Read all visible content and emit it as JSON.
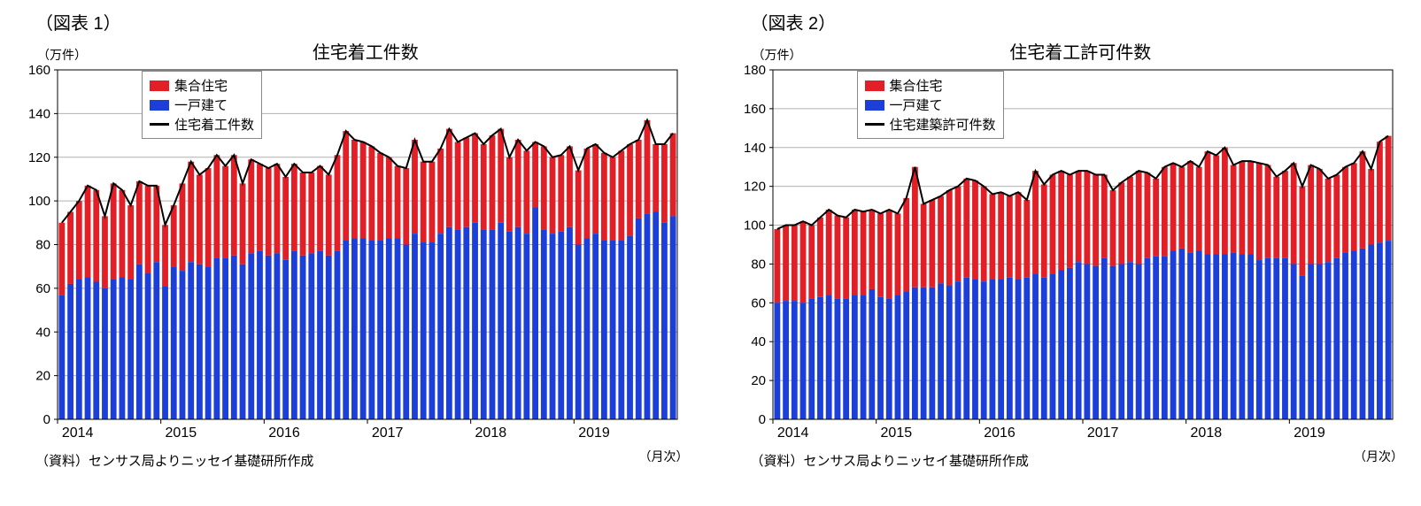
{
  "chart1": {
    "type": "stacked-bar-line",
    "figure_label": "（図表 1）",
    "title": "住宅着工件数",
    "y_unit": "（万件）",
    "x_unit": "（月次）",
    "source": "（資料）センサス局よりニッセイ基礎研所作成",
    "ylim": [
      0,
      160
    ],
    "ytick_step": 20,
    "x_years": [
      "2014",
      "2015",
      "2016",
      "2017",
      "2018",
      "2019"
    ],
    "background_color": "#ffffff",
    "grid_color": "#b0b0b0",
    "axis_color": "#000000",
    "bar_colors": {
      "multi": "#e21f26",
      "single": "#1b3fd8"
    },
    "line_color": "#000000",
    "line_width": 2,
    "legend": [
      {
        "type": "box",
        "color": "#e21f26",
        "label": "集合住宅"
      },
      {
        "type": "box",
        "color": "#1b3fd8",
        "label": "一戸建て"
      },
      {
        "type": "line",
        "color": "#000000",
        "label": "住宅着工件数"
      }
    ],
    "single": [
      57,
      62,
      64,
      65,
      63,
      60,
      64,
      65,
      64,
      71,
      67,
      72,
      61,
      70,
      68,
      72,
      71,
      70,
      74,
      74,
      75,
      71,
      76,
      77,
      75,
      76,
      73,
      77,
      75,
      76,
      77,
      75,
      77,
      82,
      83,
      83,
      82,
      82,
      83,
      83,
      80,
      85,
      81,
      81,
      85,
      88,
      87,
      88,
      90,
      87,
      87,
      90,
      86,
      88,
      85,
      97,
      87,
      85,
      86,
      88,
      80,
      83,
      85,
      82,
      82,
      82,
      84,
      92,
      94,
      95,
      90,
      93
    ],
    "total": [
      90,
      95,
      100,
      107,
      105,
      93,
      108,
      105,
      98,
      109,
      107,
      107,
      89,
      98,
      108,
      118,
      112,
      115,
      121,
      116,
      121,
      108,
      119,
      117,
      115,
      117,
      111,
      117,
      113,
      113,
      116,
      112,
      121,
      132,
      128,
      127,
      125,
      122,
      120,
      116,
      115,
      128,
      118,
      118,
      124,
      133,
      127,
      129,
      131,
      126,
      130,
      133,
      120,
      128,
      123,
      127,
      125,
      120,
      121,
      125,
      114,
      124,
      126,
      122,
      120,
      123,
      126,
      128,
      137,
      126,
      126,
      131
    ]
  },
  "chart2": {
    "type": "stacked-bar-line",
    "figure_label": "（図表 2）",
    "title": "住宅着工許可件数",
    "y_unit": "（万件）",
    "x_unit": "（月次）",
    "source": "（資料）センサス局よりニッセイ基礎研所作成",
    "ylim": [
      0,
      180
    ],
    "ytick_step": 20,
    "x_years": [
      "2014",
      "2015",
      "2016",
      "2017",
      "2018",
      "2019"
    ],
    "background_color": "#ffffff",
    "grid_color": "#b0b0b0",
    "axis_color": "#000000",
    "bar_colors": {
      "multi": "#e21f26",
      "single": "#1b3fd8"
    },
    "line_color": "#000000",
    "line_width": 2,
    "legend": [
      {
        "type": "box",
        "color": "#e21f26",
        "label": "集合住宅"
      },
      {
        "type": "box",
        "color": "#1b3fd8",
        "label": "一戸建て"
      },
      {
        "type": "line",
        "color": "#000000",
        "label": "住宅建築許可件数"
      }
    ],
    "single": [
      60,
      61,
      61,
      60,
      62,
      63,
      64,
      62,
      62,
      64,
      64,
      67,
      63,
      62,
      64,
      66,
      68,
      68,
      68,
      70,
      69,
      71,
      73,
      72,
      71,
      72,
      72,
      73,
      72,
      73,
      75,
      73,
      75,
      77,
      78,
      81,
      80,
      79,
      83,
      79,
      80,
      81,
      80,
      83,
      84,
      84,
      87,
      88,
      86,
      87,
      85,
      85,
      85,
      86,
      85,
      85,
      82,
      83,
      83,
      83,
      80,
      74,
      80,
      80,
      81,
      83,
      86,
      87,
      88,
      90,
      91,
      92
    ],
    "total": [
      98,
      100,
      100,
      102,
      100,
      104,
      108,
      105,
      104,
      108,
      107,
      108,
      106,
      108,
      106,
      114,
      130,
      111,
      113,
      115,
      118,
      120,
      124,
      123,
      120,
      116,
      117,
      115,
      117,
      113,
      128,
      121,
      126,
      128,
      126,
      128,
      128,
      126,
      126,
      118,
      122,
      125,
      128,
      127,
      124,
      130,
      132,
      130,
      133,
      130,
      138,
      136,
      140,
      131,
      133,
      133,
      132,
      131,
      125,
      128,
      132,
      120,
      131,
      129,
      124,
      126,
      130,
      132,
      138,
      129,
      143,
      146
    ]
  }
}
